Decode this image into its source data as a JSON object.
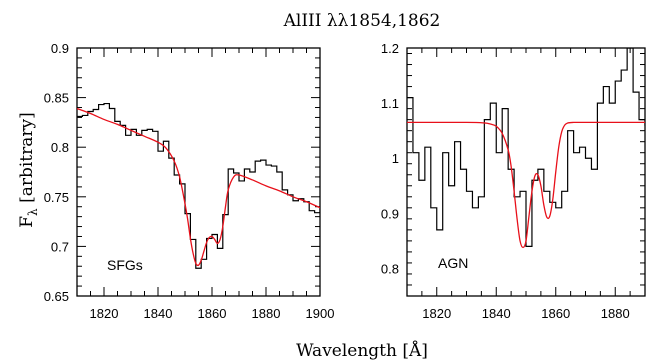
{
  "figure": {
    "title": "AlIII λλ1854,1862",
    "xlabel": "Wavelength [Å]",
    "ylabel": "F",
    "ylabel_sub": "λ",
    "ylabel_rest": " [arbitrary]"
  },
  "colors": {
    "data": "#000000",
    "model": "#e8101a",
    "axis": "#000000"
  },
  "chart_data": [
    {
      "type": "line",
      "panel_label": "SFGs",
      "xlim": [
        1810,
        1900
      ],
      "ylim": [
        0.65,
        0.9
      ],
      "xticks": [
        1820,
        1840,
        1860,
        1880,
        1900
      ],
      "yticks": [
        0.65,
        0.7,
        0.75,
        0.8,
        0.85,
        0.9
      ],
      "ytick_labels": [
        "0.65",
        "0.7",
        "0.75",
        "0.8",
        "0.85",
        "0.9"
      ],
      "grid": false,
      "series": [
        {
          "style": "step",
          "x": [
            1810,
            1812,
            1814,
            1816,
            1818,
            1820,
            1822,
            1824,
            1826,
            1828,
            1830,
            1832,
            1834,
            1836,
            1838,
            1840,
            1842,
            1844,
            1846,
            1848,
            1850,
            1852,
            1854,
            1856,
            1858,
            1860,
            1862,
            1864,
            1866,
            1868,
            1870,
            1872,
            1874,
            1876,
            1878,
            1880,
            1882,
            1884,
            1886,
            1888,
            1890,
            1892,
            1894,
            1896,
            1898,
            1900
          ],
          "y": [
            0.831,
            0.832,
            0.836,
            0.838,
            0.843,
            0.844,
            0.839,
            0.826,
            0.822,
            0.812,
            0.818,
            0.812,
            0.817,
            0.818,
            0.816,
            0.796,
            0.806,
            0.789,
            0.772,
            0.763,
            0.733,
            0.707,
            0.678,
            0.687,
            0.708,
            0.712,
            0.698,
            0.732,
            0.778,
            0.774,
            0.766,
            0.778,
            0.775,
            0.786,
            0.787,
            0.782,
            0.781,
            0.775,
            0.757,
            0.752,
            0.746,
            0.748,
            0.745,
            0.736,
            0.734,
            0.74
          ]
        },
        {
          "style": "smooth",
          "x": [
            1810,
            1815,
            1820,
            1825,
            1830,
            1835,
            1840,
            1843,
            1846,
            1848,
            1850,
            1851,
            1852,
            1853,
            1854,
            1855,
            1856,
            1857,
            1858,
            1859,
            1860,
            1861,
            1862,
            1863,
            1864,
            1865,
            1866,
            1868,
            1870,
            1875,
            1880,
            1885,
            1890,
            1895,
            1900
          ],
          "y": [
            0.839,
            0.834,
            0.828,
            0.823,
            0.817,
            0.811,
            0.805,
            0.799,
            0.786,
            0.77,
            0.743,
            0.727,
            0.708,
            0.693,
            0.683,
            0.681,
            0.686,
            0.695,
            0.704,
            0.709,
            0.71,
            0.707,
            0.703,
            0.707,
            0.72,
            0.74,
            0.757,
            0.77,
            0.772,
            0.767,
            0.761,
            0.756,
            0.75,
            0.745,
            0.739
          ]
        }
      ]
    },
    {
      "type": "line",
      "panel_label": "AGN",
      "xlim": [
        1810,
        1890
      ],
      "ylim": [
        0.75,
        1.2
      ],
      "xticks": [
        1820,
        1840,
        1860,
        1880
      ],
      "yticks": [
        0.8,
        0.9,
        1.0,
        1.1,
        1.2
      ],
      "ytick_labels": [
        "0.8",
        "0.9",
        "1",
        "1.1",
        "1.2"
      ],
      "grid": false,
      "series": [
        {
          "style": "step",
          "x": [
            1810,
            1812,
            1814,
            1816,
            1818,
            1820,
            1822,
            1824,
            1826,
            1828,
            1830,
            1832,
            1834,
            1836,
            1838,
            1840,
            1842,
            1844,
            1846,
            1848,
            1850,
            1852,
            1854,
            1856,
            1858,
            1860,
            1862,
            1864,
            1866,
            1868,
            1870,
            1872,
            1874,
            1876,
            1878,
            1880,
            1882,
            1884,
            1886,
            1888,
            1890
          ],
          "y": [
            1.11,
            1.01,
            0.96,
            1.02,
            0.91,
            0.87,
            1.01,
            0.95,
            1.03,
            0.98,
            0.94,
            0.91,
            0.93,
            1.07,
            1.1,
            1.01,
            1.09,
            0.98,
            0.93,
            0.94,
            0.84,
            0.96,
            0.98,
            0.94,
            0.92,
            0.91,
            0.94,
            1.05,
            1.01,
            1.02,
            1.0,
            0.98,
            1.1,
            1.13,
            1.1,
            1.14,
            1.16,
            1.2,
            1.12,
            1.07,
            1.06
          ]
        },
        {
          "style": "smooth",
          "x": [
            1810,
            1830,
            1836,
            1838,
            1840,
            1842,
            1844,
            1845,
            1846,
            1847,
            1848,
            1849,
            1850,
            1851,
            1852,
            1853,
            1854,
            1855,
            1856,
            1857,
            1858,
            1859,
            1860,
            1861,
            1862,
            1863,
            1864,
            1866,
            1870,
            1880,
            1890
          ],
          "y": [
            1.065,
            1.065,
            1.064,
            1.062,
            1.058,
            1.045,
            1.015,
            0.985,
            0.94,
            0.89,
            0.85,
            0.838,
            0.85,
            0.895,
            0.94,
            0.968,
            0.97,
            0.95,
            0.915,
            0.893,
            0.895,
            0.925,
            0.975,
            1.02,
            1.048,
            1.06,
            1.064,
            1.065,
            1.065,
            1.065,
            1.065
          ]
        }
      ]
    }
  ]
}
